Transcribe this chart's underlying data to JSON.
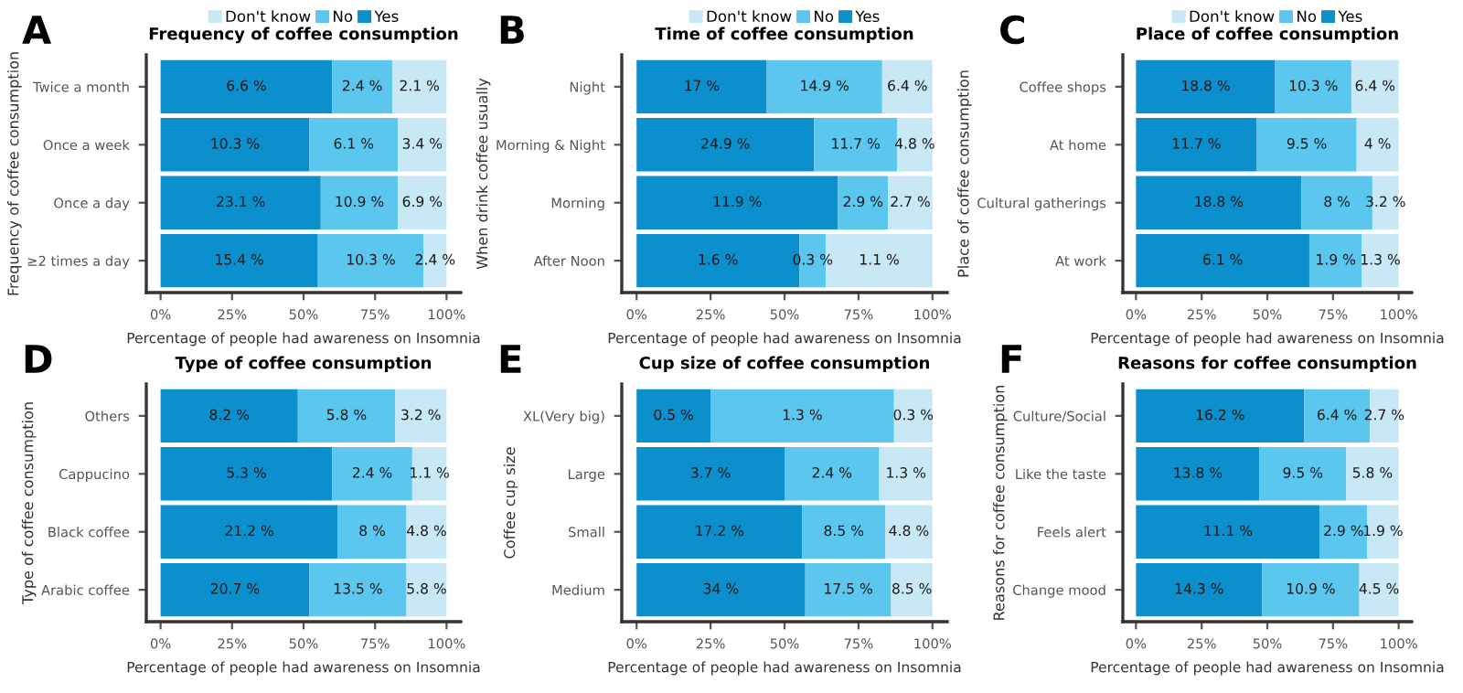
{
  "chart_data": [
    {
      "type": "bar",
      "orientation": "horizontal",
      "stacked": true,
      "title": "Frequency of coffee consumption",
      "xlabel": "Percentage of people had awareness on Insomnia",
      "ylabel": "Frequency of coffee consumption",
      "legend": "top",
      "categories": [
        "Twice a month",
        "Once a week",
        "Once a day",
        "≥2 times a day"
      ],
      "series": [
        {
          "name": "Yes",
          "color": "#0b8fcd",
          "values": [
            60,
            52,
            56,
            55
          ]
        },
        {
          "name": "No",
          "color": "#5bc6ee",
          "values": [
            21,
            31,
            27,
            37
          ]
        },
        {
          "name": "Don't know",
          "color": "#c9e8f5",
          "values": [
            19,
            17,
            17,
            8
          ]
        }
      ],
      "annotations": [
        "A",
        {
          "text": "6.6 %",
          "x": 30,
          "y": "Twice a month"
        },
        {
          "text": "2.4 %",
          "x": 70.5,
          "y": "Twice a month"
        },
        {
          "text": "2.1 %",
          "x": 90.5,
          "y": "Twice a month"
        },
        {
          "text": "10.3 %",
          "x": 26,
          "y": "Once a week"
        },
        {
          "text": "6.1 %",
          "x": 67.5,
          "y": "Once a week"
        },
        {
          "text": "3.4 %",
          "x": 91.5,
          "y": "Once a week"
        },
        {
          "text": "23.1 %",
          "x": 28,
          "y": "Once a day"
        },
        {
          "text": "10.9 %",
          "x": 69.5,
          "y": "Once a day"
        },
        {
          "text": "6.9 %",
          "x": 91.5,
          "y": "Once a day"
        },
        {
          "text": "15.4 %",
          "x": 27.5,
          "y": "≥2 times a day"
        },
        {
          "text": "10.3 %",
          "x": 73.5,
          "y": "≥2 times a day"
        },
        {
          "text": "2.4 %",
          "x": 96,
          "y": "≥2 times a day"
        }
      ],
      "xlim": [
        -5,
        105
      ],
      "xticks": [
        {
          "value": 0,
          "label": "0%"
        },
        {
          "value": 25,
          "label": "25%"
        },
        {
          "value": 50,
          "label": "50%"
        },
        {
          "value": 75,
          "label": "75%"
        },
        {
          "value": 100,
          "label": "100%"
        }
      ]
    },
    {
      "type": "bar",
      "orientation": "horizontal",
      "stacked": true,
      "title": "Time of coffee consumption",
      "xlabel": "Percentage of people had awareness on Insomnia",
      "ylabel": "When drink coffee usually",
      "legend": "top",
      "categories": [
        "Night",
        "Morning & Night",
        "Morning",
        "After Noon"
      ],
      "series": [
        {
          "name": "Yes",
          "color": "#0b8fcd",
          "values": [
            44,
            60,
            68,
            55
          ]
        },
        {
          "name": "No",
          "color": "#5bc6ee",
          "values": [
            39,
            28,
            17,
            9
          ]
        },
        {
          "name": "Don't know",
          "color": "#c9e8f5",
          "values": [
            17,
            12,
            15,
            36
          ]
        }
      ],
      "annotations": [
        "B",
        {
          "text": "17 %",
          "x": 22,
          "y": "Night"
        },
        {
          "text": "14.9 %",
          "x": 63.5,
          "y": "Night"
        },
        {
          "text": "6.4 %",
          "x": 91.5,
          "y": "Night"
        },
        {
          "text": "24.9 %",
          "x": 30,
          "y": "Morning & Night"
        },
        {
          "text": "11.7 %",
          "x": 74,
          "y": "Morning & Night"
        },
        {
          "text": "4.8 %",
          "x": 94,
          "y": "Morning & Night"
        },
        {
          "text": "11.9 %",
          "x": 34,
          "y": "Morning"
        },
        {
          "text": "2.9 %",
          "x": 76.5,
          "y": "Morning"
        },
        {
          "text": "2.7 %",
          "x": 92.5,
          "y": "Morning"
        },
        {
          "text": "1.6 %",
          "x": 27.5,
          "y": "After Noon"
        },
        {
          "text": "0.3 %",
          "x": 59.5,
          "y": "After Noon"
        },
        {
          "text": "1.1 %",
          "x": 82,
          "y": "After Noon"
        }
      ],
      "xlim": [
        -5,
        105
      ],
      "xticks": [
        {
          "value": 0,
          "label": "0%"
        },
        {
          "value": 25,
          "label": "25%"
        },
        {
          "value": 50,
          "label": "50%"
        },
        {
          "value": 75,
          "label": "75%"
        },
        {
          "value": 100,
          "label": "100%"
        }
      ]
    },
    {
      "type": "bar",
      "orientation": "horizontal",
      "stacked": true,
      "title": "Place of coffee consumption",
      "xlabel": "Percentage of people had awareness on Insomnia",
      "ylabel": "Place of coffee consumption",
      "legend": "top",
      "categories": [
        "Coffee shops",
        "At home",
        "Cultural gatherings",
        "At work"
      ],
      "series": [
        {
          "name": "Yes",
          "color": "#0b8fcd",
          "values": [
            53,
            46,
            63,
            66
          ]
        },
        {
          "name": "No",
          "color": "#5bc6ee",
          "values": [
            29,
            38,
            27,
            20
          ]
        },
        {
          "name": "Don't know",
          "color": "#c9e8f5",
          "values": [
            18,
            16,
            10,
            14
          ]
        }
      ],
      "annotations": [
        "C",
        {
          "text": "18.8 %",
          "x": 26.5,
          "y": "Coffee shops"
        },
        {
          "text": "10.3 %",
          "x": 67.5,
          "y": "Coffee shops"
        },
        {
          "text": "6.4 %",
          "x": 91,
          "y": "Coffee shops"
        },
        {
          "text": "11.7 %",
          "x": 23,
          "y": "At home"
        },
        {
          "text": "9.5 %",
          "x": 65,
          "y": "At home"
        },
        {
          "text": "4 %",
          "x": 92,
          "y": "At home"
        },
        {
          "text": "18.8 %",
          "x": 31.5,
          "y": "Cultural gatherings"
        },
        {
          "text": "8 %",
          "x": 76.5,
          "y": "Cultural gatherings"
        },
        {
          "text": "3.2 %",
          "x": 95,
          "y": "Cultural gatherings"
        },
        {
          "text": "6.1 %",
          "x": 33,
          "y": "At work"
        },
        {
          "text": "1.9 %",
          "x": 76,
          "y": "At work"
        },
        {
          "text": "1.3 %",
          "x": 93,
          "y": "At work"
        }
      ],
      "xlim": [
        -5,
        105
      ],
      "xticks": [
        {
          "value": 0,
          "label": "0%"
        },
        {
          "value": 25,
          "label": "25%"
        },
        {
          "value": 50,
          "label": "50%"
        },
        {
          "value": 75,
          "label": "75%"
        },
        {
          "value": 100,
          "label": "100%"
        }
      ]
    },
    {
      "type": "bar",
      "orientation": "horizontal",
      "stacked": true,
      "title": "Type of coffee consumption",
      "xlabel": "Percentage of people had awareness on Insomnia",
      "ylabel": "Type of coffee consumption",
      "categories": [
        "Others",
        "Cappucino",
        "Black coffee",
        "Arabic coffee"
      ],
      "series": [
        {
          "color": "#0b8fcd",
          "values": [
            48,
            60,
            62,
            52
          ]
        },
        {
          "color": "#5bc6ee",
          "values": [
            34,
            28,
            24,
            34
          ]
        },
        {
          "color": "#c9e8f5",
          "values": [
            18,
            12,
            14,
            14
          ]
        }
      ],
      "annotations": [
        "D",
        {
          "text": "8.2 %",
          "x": 24,
          "y": "Others"
        },
        {
          "text": "5.8 %",
          "x": 65,
          "y": "Others"
        },
        {
          "text": "3.2 %",
          "x": 91,
          "y": "Others"
        },
        {
          "text": "5.3 %",
          "x": 30,
          "y": "Cappucino"
        },
        {
          "text": "2.4 %",
          "x": 74,
          "y": "Cappucino"
        },
        {
          "text": "1.1 %",
          "x": 94,
          "y": "Cappucino"
        },
        {
          "text": "21.2 %",
          "x": 31,
          "y": "Black coffee"
        },
        {
          "text": "8 %",
          "x": 74,
          "y": "Black coffee"
        },
        {
          "text": "4.8 %",
          "x": 93,
          "y": "Black coffee"
        },
        {
          "text": "20.7 %",
          "x": 26,
          "y": "Arabic coffee"
        },
        {
          "text": "13.5 %",
          "x": 69,
          "y": "Arabic coffee"
        },
        {
          "text": "5.8 %",
          "x": 93,
          "y": "Arabic coffee"
        }
      ],
      "xlim": [
        -5,
        105
      ],
      "xticks": [
        {
          "value": 0,
          "label": "0%"
        },
        {
          "value": 25,
          "label": "25%"
        },
        {
          "value": 50,
          "label": "50%"
        },
        {
          "value": 75,
          "label": "75%"
        },
        {
          "value": 100,
          "label": "100%"
        }
      ]
    },
    {
      "type": "bar",
      "orientation": "horizontal",
      "stacked": true,
      "title": "Cup size of coffee consumption",
      "xlabel": "Percentage of people had awareness on Insomnia",
      "ylabel": "Coffee cup size",
      "categories": [
        "XL(Very big)",
        "Large",
        "Small",
        "Medium"
      ],
      "series": [
        {
          "color": "#0b8fcd",
          "values": [
            25,
            50,
            56,
            57
          ]
        },
        {
          "color": "#5bc6ee",
          "values": [
            62,
            32,
            28,
            29
          ]
        },
        {
          "color": "#c9e8f5",
          "values": [
            13,
            18,
            16,
            14
          ]
        }
      ],
      "annotations": [
        "E",
        {
          "text": "0.5 %",
          "x": 12.5,
          "y": "XL(Very big)"
        },
        {
          "text": "1.3 %",
          "x": 56,
          "y": "XL(Very big)"
        },
        {
          "text": "0.3 %",
          "x": 93.5,
          "y": "XL(Very big)"
        },
        {
          "text": "3.7 %",
          "x": 25,
          "y": "Large"
        },
        {
          "text": "2.4 %",
          "x": 66,
          "y": "Large"
        },
        {
          "text": "1.3 %",
          "x": 91,
          "y": "Large"
        },
        {
          "text": "17.2 %",
          "x": 28,
          "y": "Small"
        },
        {
          "text": "8.5 %",
          "x": 70,
          "y": "Small"
        },
        {
          "text": "4.8 %",
          "x": 92,
          "y": "Small"
        },
        {
          "text": "34 %",
          "x": 28.5,
          "y": "Medium"
        },
        {
          "text": "17.5 %",
          "x": 71.5,
          "y": "Medium"
        },
        {
          "text": "8.5 %",
          "x": 93,
          "y": "Medium"
        }
      ],
      "xlim": [
        -5,
        105
      ],
      "xticks": [
        {
          "value": 0,
          "label": "0%"
        },
        {
          "value": 25,
          "label": "25%"
        },
        {
          "value": 50,
          "label": "50%"
        },
        {
          "value": 75,
          "label": "75%"
        },
        {
          "value": 100,
          "label": "100%"
        }
      ]
    },
    {
      "type": "bar",
      "orientation": "horizontal",
      "stacked": true,
      "title": "Reasons for coffee consumption",
      "xlabel": "Percentage of people had awareness on Insomnia",
      "ylabel": "Reasons for coffee consumption",
      "categories": [
        "Culture/Social",
        "Like the taste",
        "Feels alert",
        "Change mood"
      ],
      "series": [
        {
          "color": "#0b8fcd",
          "values": [
            64,
            47,
            70,
            48
          ]
        },
        {
          "color": "#5bc6ee",
          "values": [
            25,
            33,
            18,
            37
          ]
        },
        {
          "color": "#c9e8f5",
          "values": [
            11,
            20,
            12,
            15
          ]
        }
      ],
      "annotations": [
        "F",
        {
          "text": "16.2 %",
          "x": 32,
          "y": "Culture/Social"
        },
        {
          "text": "6.4 %",
          "x": 76.5,
          "y": "Culture/Social"
        },
        {
          "text": "2.7 %",
          "x": 94.5,
          "y": "Culture/Social"
        },
        {
          "text": "13.8 %",
          "x": 23.5,
          "y": "Like the taste"
        },
        {
          "text": "9.5 %",
          "x": 63.5,
          "y": "Like the taste"
        },
        {
          "text": "5.8 %",
          "x": 90,
          "y": "Like the taste"
        },
        {
          "text": "11.1 %",
          "x": 35,
          "y": "Feels alert"
        },
        {
          "text": "2.9 %",
          "x": 79,
          "y": "Feels alert"
        },
        {
          "text": "1.9 %",
          "x": 94,
          "y": "Feels alert"
        },
        {
          "text": "14.3 %",
          "x": 24,
          "y": "Change mood"
        },
        {
          "text": "10.9 %",
          "x": 66.5,
          "y": "Change mood"
        },
        {
          "text": "4.5 %",
          "x": 92.5,
          "y": "Change mood"
        }
      ],
      "xlim": [
        -5,
        105
      ],
      "xticks": [
        {
          "value": 0,
          "label": "0%"
        },
        {
          "value": 25,
          "label": "25%"
        },
        {
          "value": 50,
          "label": "50%"
        },
        {
          "value": 75,
          "label": "75%"
        },
        {
          "value": 100,
          "label": "100%"
        }
      ]
    }
  ]
}
